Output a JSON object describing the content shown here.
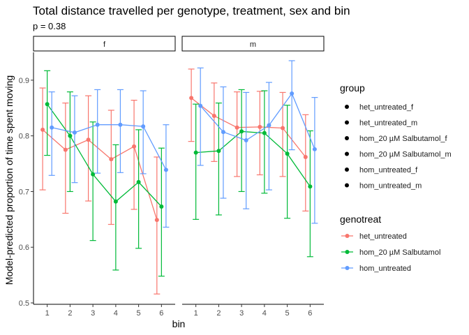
{
  "chart_data": {
    "type": "line",
    "title": "Total distance travelled per genotype, treatment, sex and bin",
    "subtitle": "p = 0.38",
    "xlabel": "bin",
    "ylabel": "Model-predicted proportion of time spent moving",
    "ylim": [
      0.5,
      0.95
    ],
    "yticks": [
      "0.5",
      "0.6",
      "0.7",
      "0.8",
      "0.9"
    ],
    "categories": [
      "1",
      "2",
      "3",
      "4",
      "5",
      "6"
    ],
    "panels": [
      {
        "label": "f",
        "series": [
          {
            "name": "het_untreated",
            "color": "#F8766D",
            "offset": -0.2,
            "values": [
              0.811,
              0.775,
              0.793,
              0.758,
              0.781,
              0.649
            ],
            "lower": [
              0.703,
              0.661,
              0.683,
              0.641,
              0.668,
              0.516
            ],
            "upper": [
              0.886,
              0.859,
              0.872,
              0.846,
              0.864,
              0.762
            ]
          },
          {
            "name": "hom_20 µM Salbutamol",
            "color": "#00BA38",
            "offset": 0.0,
            "values": [
              0.857,
              0.8,
              0.731,
              0.682,
              0.717,
              0.673
            ],
            "lower": [
              0.765,
              0.7,
              0.612,
              0.559,
              0.598,
              0.548
            ],
            "upper": [
              0.917,
              0.879,
              0.825,
              0.784,
              0.811,
              0.778
            ]
          },
          {
            "name": "hom_untreated",
            "color": "#619CFF",
            "offset": 0.2,
            "values": [
              0.815,
              0.806,
              0.82,
              0.82,
              0.817,
              0.739
            ],
            "lower": [
              0.729,
              0.716,
              0.733,
              0.734,
              0.732,
              0.636
            ],
            "upper": [
              0.879,
              0.872,
              0.883,
              0.883,
              0.881,
              0.82
            ]
          }
        ]
      },
      {
        "label": "m",
        "series": [
          {
            "name": "het_untreated",
            "color": "#F8766D",
            "offset": -0.2,
            "values": [
              0.868,
              0.836,
              0.815,
              0.816,
              0.814,
              0.762
            ],
            "lower": [
              0.79,
              0.754,
              0.727,
              0.73,
              0.727,
              0.665
            ],
            "upper": [
              0.92,
              0.895,
              0.879,
              0.88,
              0.878,
              0.838
            ]
          },
          {
            "name": "hom_20 µM Salbutamol",
            "color": "#00BA38",
            "offset": 0.0,
            "values": [
              0.77,
              0.773,
              0.808,
              0.805,
              0.768,
              0.709
            ],
            "lower": [
              0.65,
              0.658,
              0.7,
              0.697,
              0.652,
              0.583
            ],
            "upper": [
              0.857,
              0.859,
              0.883,
              0.881,
              0.855,
              0.809
            ]
          },
          {
            "name": "hom_untreated",
            "color": "#619CFF",
            "offset": 0.2,
            "values": [
              0.854,
              0.807,
              0.792,
              0.819,
              0.876,
              0.776
            ],
            "lower": [
              0.747,
              0.688,
              0.669,
              0.703,
              0.775,
              0.643
            ],
            "upper": [
              0.922,
              0.888,
              0.878,
              0.896,
              0.935,
              0.869
            ]
          }
        ]
      }
    ],
    "legends": [
      {
        "title": "group",
        "kind": "point",
        "color": "#000000",
        "entries": [
          "het_untreated_f",
          "het_untreated_m",
          "hom_20 µM Salbutamol_f",
          "hom_20 µM Salbutamol_m",
          "hom_untreated_f",
          "hom_untreated_m"
        ]
      },
      {
        "title": "genotreat",
        "kind": "line-point",
        "entries": [
          "het_untreated",
          "hom_20 µM Salbutamol",
          "hom_untreated"
        ],
        "colors": [
          "#F8766D",
          "#00BA38",
          "#619CFF"
        ]
      }
    ]
  }
}
